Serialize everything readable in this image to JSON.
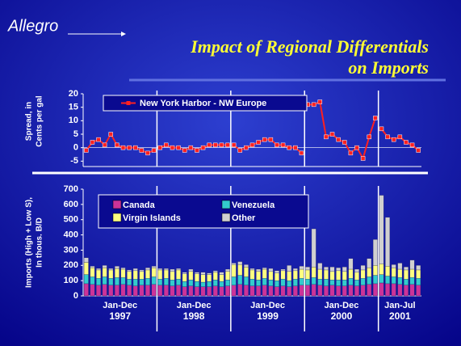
{
  "slide": {
    "logo": "Allegro",
    "title": [
      "Impact of Regional Differentials",
      "on Imports"
    ]
  },
  "chart_data": [
    {
      "type": "line",
      "ylabel": [
        "Spread, in",
        "Cents per gal"
      ],
      "groups": [
        {
          "period": "Jan-Dec",
          "year": "1997"
        },
        {
          "period": "Jan-Dec",
          "year": "1998"
        },
        {
          "period": "Jan-Dec",
          "year": "1999"
        },
        {
          "period": "Jan-Dec",
          "year": "2000"
        },
        {
          "period": "Jan-Jul",
          "year": "2001"
        }
      ],
      "ylim": [
        -7,
        20
      ],
      "yticks": [
        -5,
        0,
        5,
        10,
        15,
        20
      ],
      "series": [
        {
          "name": "New York Harbor - NW Europe",
          "color": "#ff2020",
          "values": [
            [
              -1,
              2,
              3,
              1,
              5,
              1,
              0,
              0,
              0,
              -1,
              -2,
              -1
            ],
            [
              0,
              1,
              0,
              0,
              -1,
              0,
              -1,
              0,
              1,
              1,
              1,
              1
            ],
            [
              1,
              -1,
              0,
              1,
              2,
              3,
              3,
              1,
              1,
              0,
              0,
              -2
            ],
            [
              16,
              16,
              17,
              4,
              5,
              3,
              2,
              -2,
              0,
              -4,
              4,
              11
            ],
            [
              7,
              4,
              3,
              4,
              2,
              1,
              -1
            ]
          ]
        }
      ]
    },
    {
      "type": "stacked_bar",
      "ylabel": [
        "Imports (High + Low S),",
        "In thous. B/D"
      ],
      "ylim": [
        0,
        700
      ],
      "yticks": [
        0,
        100,
        200,
        300,
        400,
        500,
        600,
        700
      ],
      "series": [
        {
          "name": "Canada",
          "color": "#cc3399",
          "values": [
            [
              80,
              75,
              70,
              75,
              70,
              70,
              75,
              70,
              65,
              70,
              70,
              75
            ],
            [
              70,
              70,
              65,
              70,
              60,
              65,
              60,
              60,
              60,
              65,
              60,
              65
            ],
            [
              70,
              75,
              70,
              65,
              65,
              70,
              65,
              60,
              65,
              60,
              65,
              70
            ],
            [
              70,
              75,
              70,
              65,
              70,
              65,
              65,
              70,
              65,
              70,
              75,
              80
            ],
            [
              85,
              80,
              80,
              75,
              70,
              75,
              70
            ]
          ]
        },
        {
          "name": "Venezuela",
          "color": "#33cccc",
          "values": [
            [
              60,
              50,
              45,
              50,
              45,
              50,
              45,
              40,
              45,
              40,
              45,
              50
            ],
            [
              40,
              45,
              40,
              40,
              35,
              40,
              35,
              30,
              35,
              40,
              35,
              40
            ],
            [
              55,
              60,
              55,
              45,
              40,
              45,
              40,
              40,
              45,
              40,
              45,
              45
            ],
            [
              40,
              45,
              40,
              45,
              35,
              40,
              40,
              45,
              40,
              45,
              50,
              55
            ],
            [
              55,
              50,
              45,
              45,
              40,
              45,
              45
            ]
          ]
        },
        {
          "name": "Virgin Islands",
          "color": "#ffff80",
          "values": [
            [
              80,
              60,
              55,
              60,
              55,
              60,
              55,
              50,
              55,
              50,
              55,
              60
            ],
            [
              60,
              55,
              55,
              60,
              50,
              55,
              50,
              50,
              45,
              50,
              45,
              55
            ],
            [
              80,
              70,
              65,
              60,
              55,
              60,
              55,
              50,
              55,
              60,
              55,
              60
            ],
            [
              60,
              70,
              65,
              60,
              55,
              60,
              55,
              60,
              50,
              55,
              60,
              65
            ],
            [
              70,
              65,
              60,
              55,
              60,
              55,
              55
            ]
          ]
        },
        {
          "name": "Other",
          "color": "#d0d0d0",
          "values": [
            [
              30,
              10,
              10,
              15,
              10,
              15,
              10,
              10,
              15,
              10,
              15,
              10
            ],
            [
              10,
              10,
              15,
              10,
              10,
              15,
              10,
              15,
              10,
              10,
              15,
              15
            ],
            [
              10,
              20,
              15,
              10,
              15,
              10,
              20,
              15,
              10,
              40,
              15,
              20
            ],
            [
              20,
              250,
              40,
              20,
              30,
              20,
              30,
              70,
              20,
              30,
              60,
              170
            ],
            [
              450,
              320,
              20,
              40,
              20,
              60,
              30
            ]
          ]
        }
      ]
    }
  ]
}
